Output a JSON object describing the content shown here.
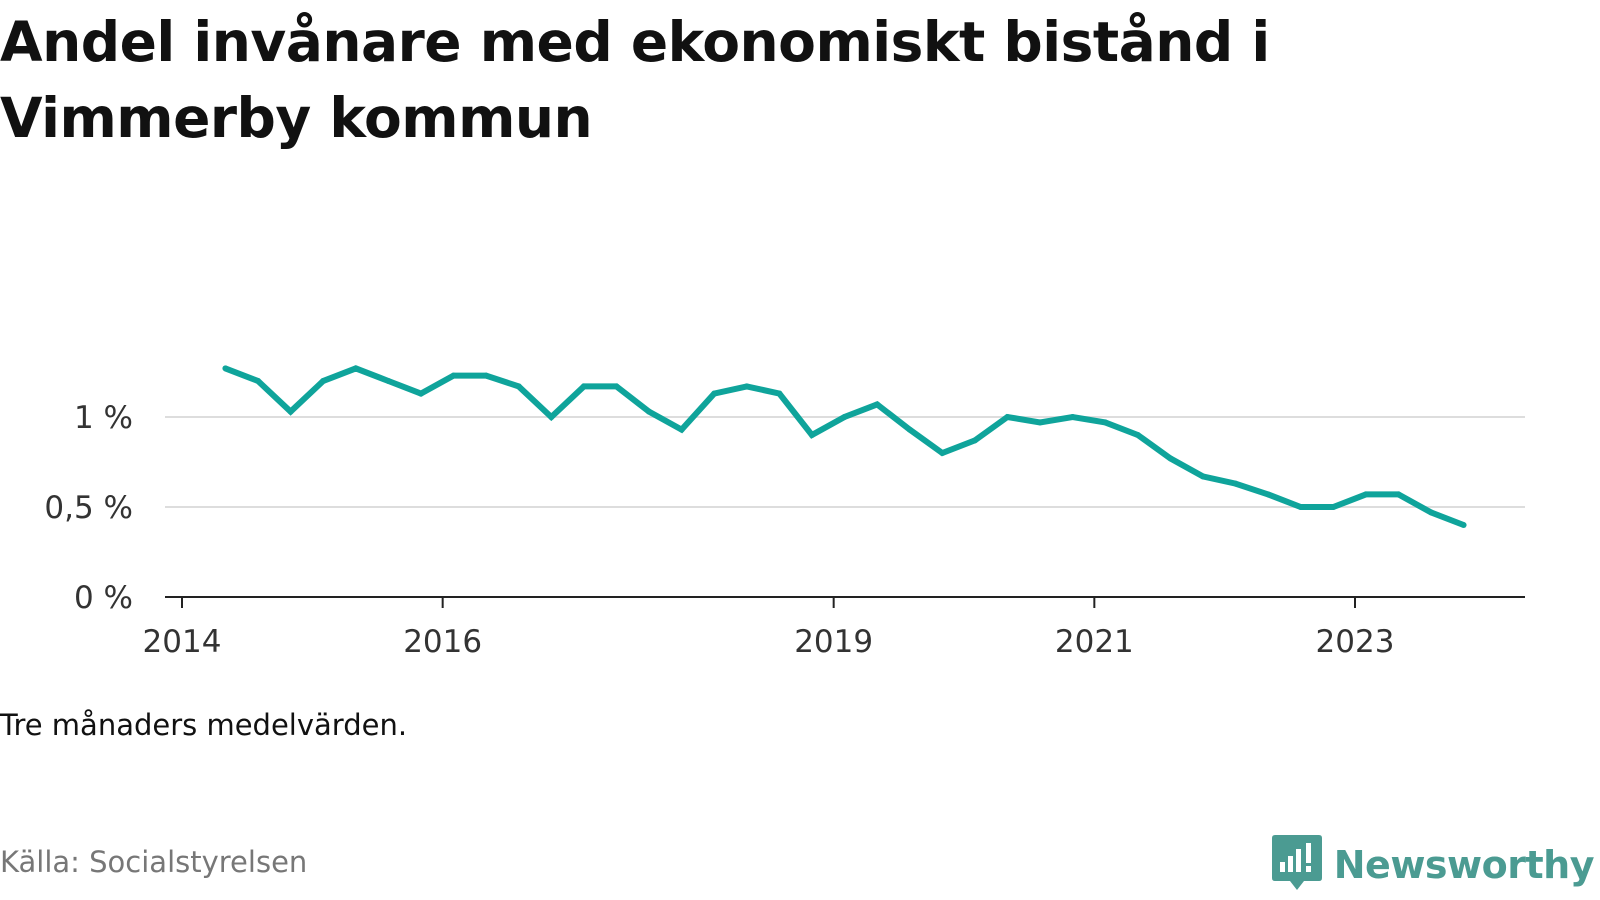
{
  "title": "Andel invånare med ekonomiskt bistånd i Vimmerby kommun",
  "note": "Tre månaders medelvärden.",
  "source": "Källa: Socialstyrelsen",
  "brand": {
    "name": "Newsworthy",
    "icon": "newsworthy-logo-icon",
    "color": "#4b9b92"
  },
  "colors": {
    "line": "#0fa49b",
    "grid": "#dddddd",
    "axis": "#222222"
  },
  "chart_data": {
    "type": "line",
    "title": "Andel invånare med ekonomiskt bistånd i Vimmerby kommun",
    "xlabel": "",
    "ylabel": "",
    "x_ticks": [
      "2014",
      "2016",
      "2019",
      "2021",
      "2023"
    ],
    "y_ticks": [
      "0 %",
      "0,5 %",
      "1 %"
    ],
    "ylim": [
      0,
      1.5
    ],
    "grid": true,
    "series": [
      {
        "values": [
          [
            "2014-05",
            1.27
          ],
          [
            "2014-08",
            1.2
          ],
          [
            "2014-11",
            1.03
          ],
          [
            "2015-02",
            1.2
          ],
          [
            "2015-05",
            1.27
          ],
          [
            "2015-08",
            1.2
          ],
          [
            "2015-11",
            1.13
          ],
          [
            "2016-02",
            1.23
          ],
          [
            "2016-05",
            1.23
          ],
          [
            "2016-08",
            1.17
          ],
          [
            "2016-11",
            1.0
          ],
          [
            "2017-02",
            1.17
          ],
          [
            "2017-05",
            1.17
          ],
          [
            "2017-08",
            1.03
          ],
          [
            "2017-11",
            0.93
          ],
          [
            "2018-02",
            1.13
          ],
          [
            "2018-05",
            1.17
          ],
          [
            "2018-08",
            1.13
          ],
          [
            "2018-11",
            0.9
          ],
          [
            "2019-02",
            1.0
          ],
          [
            "2019-05",
            1.07
          ],
          [
            "2019-08",
            0.93
          ],
          [
            "2019-11",
            0.8
          ],
          [
            "2020-02",
            0.87
          ],
          [
            "2020-05",
            1.0
          ],
          [
            "2020-08",
            0.97
          ],
          [
            "2020-11",
            1.0
          ],
          [
            "2021-02",
            0.97
          ],
          [
            "2021-05",
            0.9
          ],
          [
            "2021-08",
            0.77
          ],
          [
            "2021-11",
            0.67
          ],
          [
            "2022-02",
            0.63
          ],
          [
            "2022-05",
            0.57
          ],
          [
            "2022-08",
            0.5
          ],
          [
            "2022-11",
            0.5
          ],
          [
            "2023-02",
            0.57
          ],
          [
            "2023-05",
            0.57
          ],
          [
            "2023-08",
            0.47
          ],
          [
            "2023-11",
            0.4
          ]
        ]
      }
    ]
  }
}
